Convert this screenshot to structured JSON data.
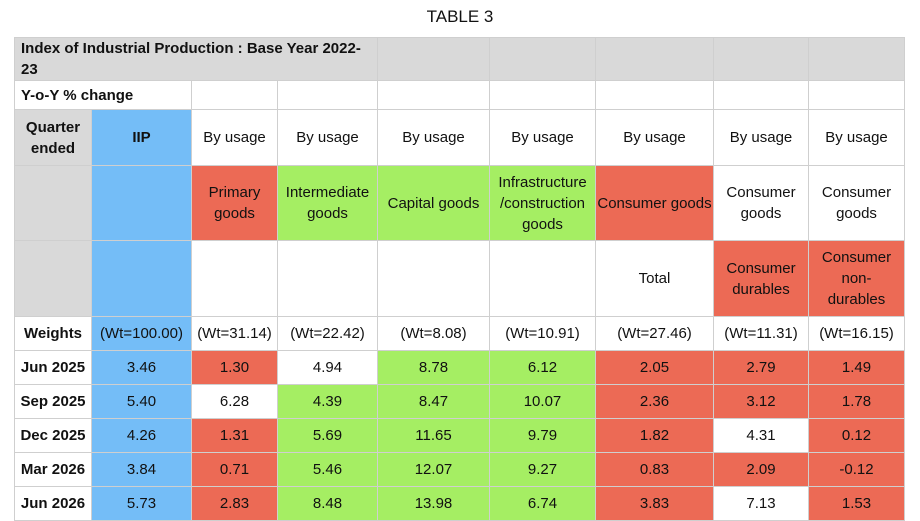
{
  "title": "TABLE 3",
  "table": {
    "header": "Index of Industrial Production : Base Year 2022-23",
    "yoy_label": "Y-o-Y % change",
    "quarter_label": "Quarter ended",
    "iip_label": "IIP",
    "usage_row": [
      "By usage",
      "By usage",
      "By usage",
      "By usage",
      "By usage",
      "By usage",
      "By usage"
    ],
    "group_row": [
      "Primary goods",
      "Intermediate goods",
      "Capital goods",
      "Infrastructure /construction goods",
      "Consumer goods",
      "Consumer goods",
      "Consumer goods"
    ],
    "sub_row": [
      "",
      "",
      "",
      "",
      "Total",
      "Consumer durables",
      "Consumer non-durables"
    ],
    "weights_label": "Weights",
    "weights": [
      "(Wt=100.00)",
      "(Wt=31.14)",
      "(Wt=22.42)",
      "(Wt=8.08)",
      "(Wt=10.91)",
      "(Wt=27.46)",
      "(Wt=11.31)",
      "(Wt=16.15)"
    ],
    "rows": [
      {
        "quarter": "Jun 2025",
        "values": [
          "3.46",
          "1.30",
          "4.94",
          "8.78",
          "6.12",
          "2.05",
          "2.79",
          "1.49"
        ],
        "colors": [
          "blue",
          "red",
          "white",
          "green",
          "green",
          "red",
          "red",
          "red"
        ]
      },
      {
        "quarter": "Sep 2025",
        "values": [
          "5.40",
          "6.28",
          "4.39",
          "8.47",
          "10.07",
          "2.36",
          "3.12",
          "1.78"
        ],
        "colors": [
          "blue",
          "white",
          "green",
          "green",
          "green",
          "red",
          "red",
          "red"
        ]
      },
      {
        "quarter": "Dec 2025",
        "values": [
          "4.26",
          "1.31",
          "5.69",
          "11.65",
          "9.79",
          "1.82",
          "4.31",
          "0.12"
        ],
        "colors": [
          "blue",
          "red",
          "green",
          "green",
          "green",
          "red",
          "white",
          "red"
        ]
      },
      {
        "quarter": "Mar 2026",
        "values": [
          "3.84",
          "0.71",
          "5.46",
          "12.07",
          "9.27",
          "0.83",
          "2.09",
          "-0.12"
        ],
        "colors": [
          "blue",
          "red",
          "green",
          "green",
          "green",
          "red",
          "red",
          "red"
        ]
      },
      {
        "quarter": "Jun 2026",
        "values": [
          "5.73",
          "2.83",
          "8.48",
          "13.98",
          "6.74",
          "3.83",
          "7.13",
          "1.53"
        ],
        "colors": [
          "blue",
          "red",
          "green",
          "green",
          "green",
          "red",
          "white",
          "red"
        ]
      }
    ],
    "colors": {
      "blue": "#74bdf7",
      "red": "#ec6a55",
      "green": "#a5ee63",
      "white": "#ffffff",
      "header_gray": "#d9d9d9"
    }
  }
}
